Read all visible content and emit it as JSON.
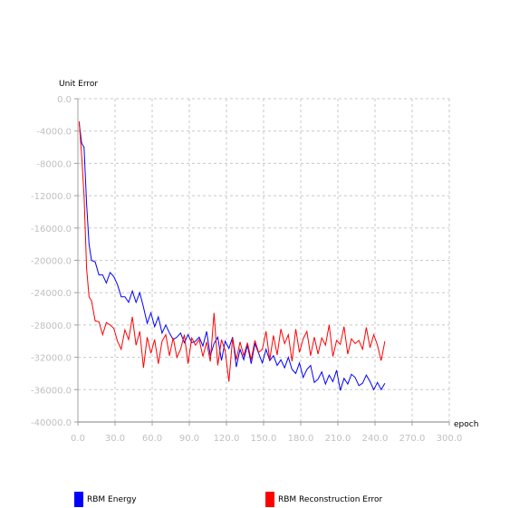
{
  "chart_data": {
    "type": "line",
    "ylabel": "Unit Error",
    "xlabel": "epoch",
    "xlim": [
      0,
      300
    ],
    "ylim": [
      -40000,
      0
    ],
    "grid": true,
    "x_ticks": [
      0,
      30,
      60,
      90,
      120,
      150,
      180,
      210,
      240,
      270,
      300
    ],
    "x_tick_labels": [
      "0.0",
      "30.0",
      "60.0",
      "90.0",
      "120.0",
      "150.0",
      "180.0",
      "210.0",
      "240.0",
      "270.0",
      "300.0"
    ],
    "y_ticks": [
      0,
      -4000,
      -8000,
      -12000,
      -16000,
      -20000,
      -24000,
      -28000,
      -32000,
      -36000,
      -40000
    ],
    "y_tick_labels": [
      "0.0",
      "-4000.0",
      "-8000.0",
      "-12000.0",
      "-16000.0",
      "-20000.0",
      "-24000.0",
      "-28000.0",
      "-32000.0",
      "-36000.0",
      "-40000.0"
    ],
    "legend_position": "bottom",
    "series": [
      {
        "name": "RBM Energy",
        "color": "#0000ff",
        "x": [
          1,
          3,
          5,
          7,
          9,
          11,
          14,
          17,
          20,
          23,
          26,
          29,
          32,
          35,
          38,
          41,
          44,
          47,
          50,
          53,
          56,
          59,
          62,
          65,
          68,
          71,
          74,
          77,
          80,
          83,
          86,
          89,
          92,
          95,
          98,
          101,
          104,
          107,
          110,
          113,
          116,
          119,
          122,
          125,
          128,
          131,
          134,
          137,
          140,
          143,
          146,
          149,
          152,
          155,
          158,
          161,
          164,
          167,
          170,
          173,
          176,
          179,
          182,
          185,
          188,
          191,
          194,
          197,
          200,
          203,
          206,
          209,
          212,
          215,
          218,
          221,
          224,
          227,
          230,
          233,
          236,
          239,
          242,
          245,
          248
        ],
        "values": [
          -3000,
          -5500,
          -6000,
          -13000,
          -18000,
          -20000,
          -20200,
          -21800,
          -21800,
          -22800,
          -21500,
          -22000,
          -23000,
          -24500,
          -24500,
          -25200,
          -23800,
          -25200,
          -24000,
          -25800,
          -27800,
          -26500,
          -28200,
          -27000,
          -29000,
          -28000,
          -29000,
          -29800,
          -29500,
          -29000,
          -30200,
          -29200,
          -30200,
          -30000,
          -29500,
          -30600,
          -28800,
          -31800,
          -30300,
          -29500,
          -32400,
          -30000,
          -30900,
          -29500,
          -33200,
          -31000,
          -32300,
          -30500,
          -32800,
          -30300,
          -31500,
          -32700,
          -31000,
          -32400,
          -31800,
          -33000,
          -32300,
          -33300,
          -32000,
          -33500,
          -34000,
          -32700,
          -34500,
          -33500,
          -33000,
          -35100,
          -34700,
          -33800,
          -35300,
          -34200,
          -35000,
          -33600,
          -36100,
          -34600,
          -35300,
          -34100,
          -34500,
          -35500,
          -35200,
          -34200,
          -35000,
          -36000,
          -35100,
          -36000,
          -35200
        ]
      },
      {
        "name": "RBM Reconstruction Error",
        "color": "#ff0000",
        "x": [
          1,
          3,
          5,
          7,
          9,
          11,
          14,
          17,
          20,
          23,
          26,
          29,
          32,
          35,
          38,
          41,
          44,
          47,
          50,
          53,
          56,
          59,
          62,
          65,
          68,
          71,
          74,
          77,
          80,
          83,
          86,
          89,
          92,
          95,
          98,
          101,
          104,
          107,
          110,
          113,
          116,
          119,
          122,
          125,
          128,
          131,
          134,
          137,
          140,
          143,
          146,
          149,
          152,
          155,
          158,
          161,
          164,
          167,
          170,
          173,
          176,
          179,
          182,
          185,
          188,
          191,
          194,
          197,
          200,
          203,
          206,
          209,
          212,
          215,
          218,
          221,
          224,
          227,
          230,
          233,
          236,
          239,
          242,
          245,
          248
        ],
        "values": [
          -2800,
          -7000,
          -12000,
          -21000,
          -24500,
          -25000,
          -27500,
          -27600,
          -29200,
          -27700,
          -28000,
          -28400,
          -30000,
          -31000,
          -28600,
          -29800,
          -27000,
          -30500,
          -28800,
          -33300,
          -29500,
          -31500,
          -29800,
          -32800,
          -30000,
          -29200,
          -31800,
          -29600,
          -32000,
          -31000,
          -29200,
          -32800,
          -29600,
          -30500,
          -29800,
          -31900,
          -30100,
          -32500,
          -26500,
          -33000,
          -29800,
          -31200,
          -35000,
          -29600,
          -32300,
          -30100,
          -31800,
          -30200,
          -32300,
          -29900,
          -31400,
          -31000,
          -28800,
          -32300,
          -29300,
          -31700,
          -28500,
          -30300,
          -29200,
          -32500,
          -28500,
          -31400,
          -29700,
          -28800,
          -31800,
          -29500,
          -31600,
          -29600,
          -30500,
          -28000,
          -31900,
          -29900,
          -30400,
          -28200,
          -31600,
          -29700,
          -30300,
          -29900,
          -31000,
          -28300,
          -30800,
          -29200,
          -30500,
          -32400,
          -30000
        ]
      }
    ]
  }
}
